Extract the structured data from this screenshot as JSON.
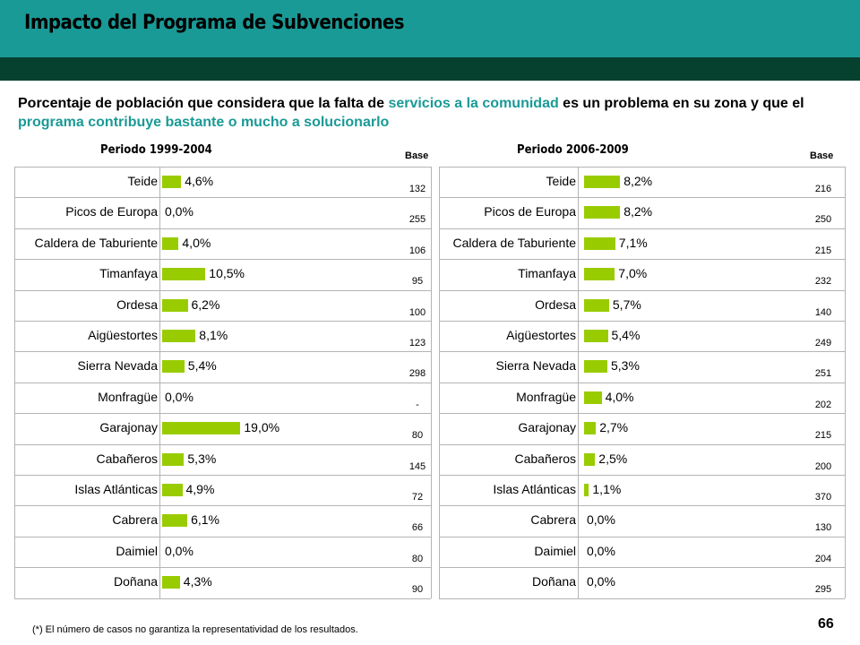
{
  "header": {
    "title": "Impacto del Programa de Subvenciones"
  },
  "subtitle": {
    "part1": "Porcentaje de población que considera que la falta de ",
    "highlight1": "servicios a la comunidad",
    "part2": " es un problema en su zona y que el ",
    "highlight2": "programa contribuye bastante o mucho a solucionarlo"
  },
  "colors": {
    "teal": "#1a9a96",
    "dark_green": "#06402f",
    "bar": "#99cc00"
  },
  "chart_data": [
    {
      "type": "bar",
      "orientation": "horizontal",
      "title": "Periodo 1999-2004",
      "base_label": "Base",
      "categories": [
        "Teide",
        "Picos de Europa",
        "Caldera de Taburiente",
        "Timanfaya",
        "Ordesa",
        "Aigüestortes",
        "Sierra Nevada",
        "Monfragüe",
        "Garajonay",
        "Cabañeros",
        "Islas Atlánticas",
        "Cabrera",
        "Daimiel",
        "Doñana"
      ],
      "values": [
        4.6,
        0.0,
        4.0,
        10.5,
        6.2,
        8.1,
        5.4,
        0.0,
        19.0,
        5.3,
        4.9,
        6.1,
        0.0,
        4.3
      ],
      "value_labels": [
        "4,6%",
        "0,0%",
        "4,0%",
        "10,5%",
        "6,2%",
        "8,1%",
        "5,4%",
        "0,0%",
        "19,0%",
        "5,3%",
        "4,9%",
        "6,1%",
        "0,0%",
        "4,3%"
      ],
      "bases": [
        "132",
        "255",
        "106",
        "95",
        "100",
        "123",
        "298",
        "-",
        "80",
        "145",
        "72",
        "66",
        "80",
        "90"
      ]
    },
    {
      "type": "bar",
      "orientation": "horizontal",
      "title": "Periodo 2006-2009",
      "base_label": "Base",
      "categories": [
        "Teide",
        "Picos de Europa",
        "Caldera de Taburiente",
        "Timanfaya",
        "Ordesa",
        "Aigüestortes",
        "Sierra Nevada",
        "Monfragüe",
        "Garajonay",
        "Cabañeros",
        "Islas Atlánticas",
        "Cabrera",
        "Daimiel",
        "Doñana"
      ],
      "values": [
        8.2,
        8.2,
        7.1,
        7.0,
        5.7,
        5.4,
        5.3,
        4.0,
        2.7,
        2.5,
        1.1,
        0.0,
        0.0,
        0.0
      ],
      "value_labels": [
        "8,2%",
        "8,2%",
        "7,1%",
        "7,0%",
        "5,7%",
        "5,4%",
        "5,3%",
        "4,0%",
        "2,7%",
        "2,5%",
        "1,1%",
        "0,0%",
        "0,0%",
        "0,0%"
      ],
      "bases": [
        "216",
        "250",
        "215",
        "232",
        "140",
        "249",
        "251",
        "202",
        "215",
        "200",
        "370",
        "130",
        "204",
        "295"
      ]
    }
  ],
  "footnote": "(*) El número de casos no garantiza la representatividad de los resultados.",
  "page_number": "66"
}
